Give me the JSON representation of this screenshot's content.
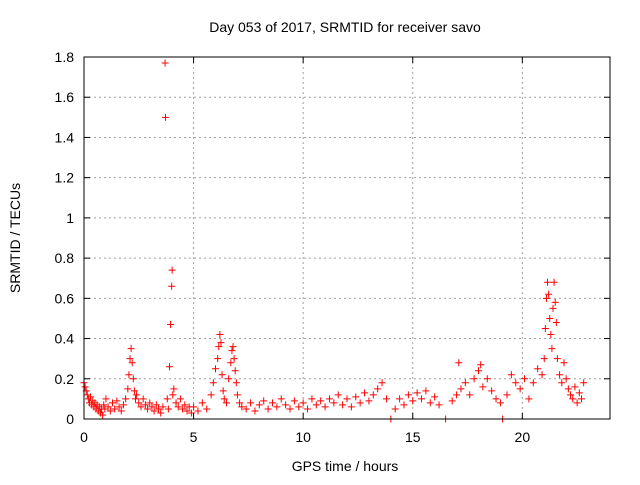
{
  "chart_data": {
    "type": "scatter",
    "title": "Day 053 of 2017, SRMTID for receiver savo",
    "xlabel": "GPS time / hours",
    "ylabel": "SRMTID / TECUs",
    "xlim": [
      0,
      24
    ],
    "ylim": [
      0,
      1.8
    ],
    "xticks": [
      0,
      5,
      10,
      15,
      20
    ],
    "xtick_labels": [
      "0",
      "5",
      "10",
      "15",
      "20"
    ],
    "yticks": [
      0,
      0.2,
      0.4,
      0.6,
      0.8,
      1,
      1.2,
      1.4,
      1.6,
      1.8
    ],
    "ytick_labels": [
      "0",
      "0.2",
      "0.4",
      "0.6",
      "0.8",
      "1",
      "1.2",
      "1.4",
      "1.6",
      "1.8"
    ],
    "grid": true,
    "marker": "plus",
    "color": "#ff0000",
    "series": [
      {
        "name": "SRMTID",
        "points": [
          [
            0.0,
            0.18
          ],
          [
            0.05,
            0.16
          ],
          [
            0.1,
            0.14
          ],
          [
            0.15,
            0.12
          ],
          [
            0.2,
            0.1
          ],
          [
            0.25,
            0.08
          ],
          [
            0.3,
            0.11
          ],
          [
            0.35,
            0.07
          ],
          [
            0.4,
            0.09
          ],
          [
            0.45,
            0.06
          ],
          [
            0.5,
            0.08
          ],
          [
            0.55,
            0.05
          ],
          [
            0.6,
            0.07
          ],
          [
            0.65,
            0.04
          ],
          [
            0.7,
            0.06
          ],
          [
            0.75,
            0.03
          ],
          [
            0.8,
            0.05
          ],
          [
            0.85,
            0.02
          ],
          [
            0.9,
            0.07
          ],
          [
            0.95,
            0.05
          ],
          [
            1.0,
            0.1
          ],
          [
            1.1,
            0.06
          ],
          [
            1.2,
            0.04
          ],
          [
            1.3,
            0.08
          ],
          [
            1.4,
            0.05
          ],
          [
            1.5,
            0.09
          ],
          [
            1.6,
            0.06
          ],
          [
            1.7,
            0.04
          ],
          [
            1.8,
            0.07
          ],
          [
            1.9,
            0.1
          ],
          [
            2.0,
            0.15
          ],
          [
            2.05,
            0.22
          ],
          [
            2.1,
            0.3
          ],
          [
            2.15,
            0.35
          ],
          [
            2.2,
            0.28
          ],
          [
            2.25,
            0.2
          ],
          [
            2.3,
            0.14
          ],
          [
            2.35,
            0.1
          ],
          [
            2.4,
            0.12
          ],
          [
            2.5,
            0.08
          ],
          [
            2.6,
            0.06
          ],
          [
            2.7,
            0.1
          ],
          [
            2.8,
            0.07
          ],
          [
            2.9,
            0.05
          ],
          [
            3.0,
            0.08
          ],
          [
            3.1,
            0.06
          ],
          [
            3.2,
            0.04
          ],
          [
            3.3,
            0.07
          ],
          [
            3.4,
            0.05
          ],
          [
            3.5,
            0.03
          ],
          [
            3.6,
            0.06
          ],
          [
            3.7,
            1.77
          ],
          [
            3.72,
            1.5
          ],
          [
            3.8,
            0.1
          ],
          [
            3.85,
            0.05
          ],
          [
            3.9,
            0.26
          ],
          [
            3.95,
            0.47
          ],
          [
            4.0,
            0.66
          ],
          [
            4.02,
            0.74
          ],
          [
            4.05,
            0.12
          ],
          [
            4.1,
            0.15
          ],
          [
            4.2,
            0.08
          ],
          [
            4.3,
            0.06
          ],
          [
            4.4,
            0.1
          ],
          [
            4.5,
            0.05
          ],
          [
            4.6,
            0.07
          ],
          [
            4.7,
            0.04
          ],
          [
            4.8,
            0.06
          ],
          [
            4.9,
            0.03
          ],
          [
            5.0,
            0.06
          ],
          [
            5.2,
            0.04
          ],
          [
            5.4,
            0.08
          ],
          [
            5.6,
            0.05
          ],
          [
            5.8,
            0.12
          ],
          [
            5.9,
            0.18
          ],
          [
            6.0,
            0.25
          ],
          [
            6.1,
            0.3
          ],
          [
            6.15,
            0.36
          ],
          [
            6.2,
            0.42
          ],
          [
            6.25,
            0.38
          ],
          [
            6.3,
            0.22
          ],
          [
            6.35,
            0.14
          ],
          [
            6.4,
            0.1
          ],
          [
            6.5,
            0.08
          ],
          [
            6.6,
            0.2
          ],
          [
            6.7,
            0.28
          ],
          [
            6.75,
            0.34
          ],
          [
            6.8,
            0.36
          ],
          [
            6.85,
            0.3
          ],
          [
            6.9,
            0.24
          ],
          [
            6.95,
            0.18
          ],
          [
            7.0,
            0.12
          ],
          [
            7.1,
            0.08
          ],
          [
            7.2,
            0.06
          ],
          [
            7.4,
            0.05
          ],
          [
            7.6,
            0.08
          ],
          [
            7.8,
            0.04
          ],
          [
            8.0,
            0.07
          ],
          [
            8.2,
            0.09
          ],
          [
            8.4,
            0.05
          ],
          [
            8.6,
            0.08
          ],
          [
            8.8,
            0.06
          ],
          [
            9.0,
            0.1
          ],
          [
            9.2,
            0.07
          ],
          [
            9.4,
            0.05
          ],
          [
            9.6,
            0.09
          ],
          [
            9.8,
            0.06
          ],
          [
            10.0,
            0.08
          ],
          [
            10.2,
            0.05
          ],
          [
            10.4,
            0.1
          ],
          [
            10.6,
            0.07
          ],
          [
            10.8,
            0.09
          ],
          [
            11.0,
            0.06
          ],
          [
            11.2,
            0.1
          ],
          [
            11.4,
            0.08
          ],
          [
            11.6,
            0.12
          ],
          [
            11.8,
            0.07
          ],
          [
            12.0,
            0.1
          ],
          [
            12.2,
            0.06
          ],
          [
            12.4,
            0.11
          ],
          [
            12.6,
            0.08
          ],
          [
            12.8,
            0.13
          ],
          [
            13.0,
            0.09
          ],
          [
            13.2,
            0.12
          ],
          [
            13.4,
            0.15
          ],
          [
            13.6,
            0.18
          ],
          [
            13.8,
            0.1
          ],
          [
            14.0,
            0.0
          ],
          [
            14.2,
            0.05
          ],
          [
            14.4,
            0.1
          ],
          [
            14.6,
            0.07
          ],
          [
            14.8,
            0.12
          ],
          [
            15.0,
            0.09
          ],
          [
            15.2,
            0.13
          ],
          [
            15.4,
            0.1
          ],
          [
            15.6,
            0.14
          ],
          [
            15.8,
            0.08
          ],
          [
            16.0,
            0.11
          ],
          [
            16.2,
            0.07
          ],
          [
            16.5,
            0.0
          ],
          [
            16.8,
            0.09
          ],
          [
            17.0,
            0.12
          ],
          [
            17.1,
            0.28
          ],
          [
            17.2,
            0.15
          ],
          [
            17.4,
            0.18
          ],
          [
            17.6,
            0.12
          ],
          [
            17.8,
            0.2
          ],
          [
            18.0,
            0.24
          ],
          [
            18.1,
            0.27
          ],
          [
            18.2,
            0.16
          ],
          [
            18.4,
            0.2
          ],
          [
            18.6,
            0.14
          ],
          [
            18.8,
            0.1
          ],
          [
            19.0,
            0.08
          ],
          [
            19.1,
            0.0
          ],
          [
            19.3,
            0.12
          ],
          [
            19.5,
            0.22
          ],
          [
            19.7,
            0.18
          ],
          [
            19.9,
            0.15
          ],
          [
            20.1,
            0.2
          ],
          [
            20.3,
            0.1
          ],
          [
            20.5,
            0.18
          ],
          [
            20.7,
            0.25
          ],
          [
            20.9,
            0.22
          ],
          [
            21.0,
            0.3
          ],
          [
            21.05,
            0.45
          ],
          [
            21.1,
            0.6
          ],
          [
            21.15,
            0.68
          ],
          [
            21.2,
            0.62
          ],
          [
            21.25,
            0.5
          ],
          [
            21.3,
            0.42
          ],
          [
            21.35,
            0.35
          ],
          [
            21.4,
            0.55
          ],
          [
            21.45,
            0.68
          ],
          [
            21.5,
            0.58
          ],
          [
            21.55,
            0.48
          ],
          [
            21.6,
            0.3
          ],
          [
            21.7,
            0.22
          ],
          [
            21.8,
            0.18
          ],
          [
            21.9,
            0.28
          ],
          [
            22.0,
            0.2
          ],
          [
            22.1,
            0.15
          ],
          [
            22.2,
            0.12
          ],
          [
            22.3,
            0.1
          ],
          [
            22.4,
            0.16
          ],
          [
            22.5,
            0.08
          ],
          [
            22.6,
            0.13
          ],
          [
            22.7,
            0.1
          ],
          [
            22.8,
            0.18
          ]
        ]
      }
    ]
  }
}
